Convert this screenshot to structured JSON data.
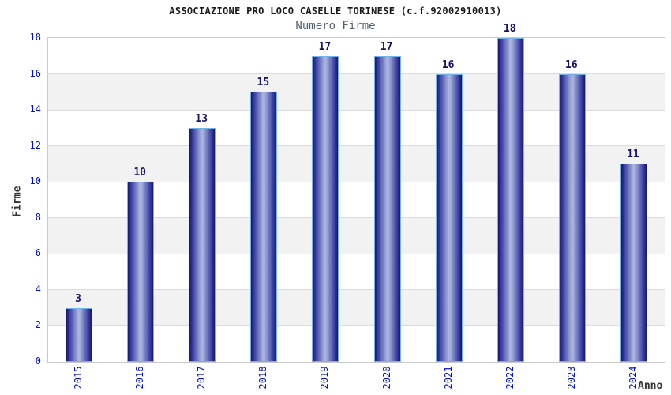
{
  "chart_data": {
    "type": "bar",
    "title": "ASSOCIAZIONE PRO LOCO CASELLE TORINESE (c.f.92002910013)",
    "subtitle": "Numero Firme",
    "xlabel": "Anno",
    "ylabel": "Firme",
    "categories": [
      "2015",
      "2016",
      "2017",
      "2018",
      "2019",
      "2020",
      "2021",
      "2022",
      "2023",
      "2024"
    ],
    "values": [
      3,
      10,
      13,
      15,
      17,
      17,
      16,
      18,
      16,
      11
    ],
    "ylim": [
      0,
      18
    ],
    "y_ticks": [
      0,
      2,
      4,
      6,
      8,
      10,
      12,
      14,
      16,
      18
    ],
    "grid": "horizontal-bands-alternating",
    "legend": "none",
    "bar_style": "vertical-cylinder-gradient",
    "colors": {
      "bar_dark": "#17166e",
      "bar_mid": "#3c42a4",
      "bar_light": "#aab3dd",
      "bar_border": "#74b2e8",
      "value_label": "#14146e",
      "tick_label": "#0010cc",
      "axis_label": "#333333",
      "title": "#1a1a1a",
      "subtitle": "#53616e",
      "band": "#f2f2f2",
      "grid_line": "#dcdcdc",
      "plot_border": "#c9c9c9",
      "background": "#ffffff"
    }
  }
}
